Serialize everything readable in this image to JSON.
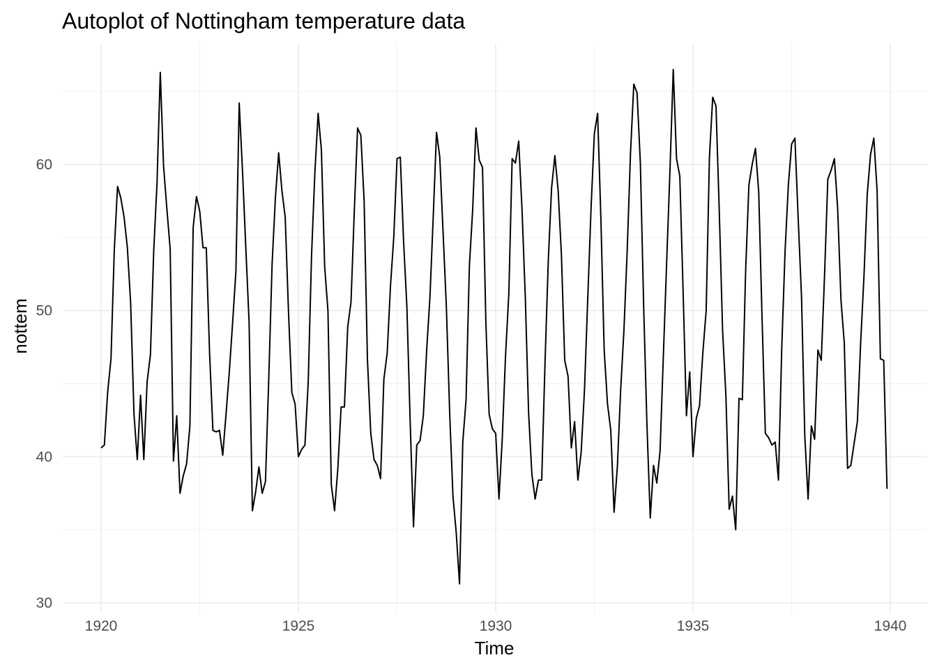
{
  "chart_data": {
    "type": "line",
    "title": "Autoplot of Nottingham temperature data",
    "xlabel": "Time",
    "ylabel": "nottem",
    "xlim": [
      1919.75,
      1940.15
    ],
    "ylim": [
      29.5,
      67.5
    ],
    "x_ticks": [
      1920,
      1925,
      1930,
      1935,
      1940
    ],
    "y_ticks": [
      30,
      40,
      50,
      60
    ],
    "grid": true,
    "start": 1920,
    "frequency": 12,
    "line_color": "#000000",
    "values": [
      40.6,
      40.8,
      44.4,
      46.7,
      54.1,
      58.5,
      57.7,
      56.4,
      54.3,
      50.5,
      42.9,
      39.8,
      44.2,
      39.8,
      45.1,
      47.0,
      54.1,
      58.7,
      66.3,
      59.9,
      57.0,
      54.2,
      39.7,
      42.8,
      37.5,
      38.7,
      39.5,
      42.1,
      55.7,
      57.8,
      56.8,
      54.3,
      54.3,
      47.1,
      41.8,
      41.7,
      41.8,
      40.1,
      42.9,
      45.8,
      49.2,
      52.7,
      64.2,
      59.6,
      54.4,
      49.2,
      36.3,
      37.6,
      39.3,
      37.5,
      38.3,
      45.5,
      53.2,
      57.7,
      60.8,
      58.2,
      56.4,
      49.8,
      44.4,
      43.6,
      40.0,
      40.5,
      40.8,
      45.1,
      53.8,
      59.4,
      63.5,
      61.0,
      53.0,
      50.0,
      38.1,
      36.3,
      39.2,
      43.4,
      43.4,
      48.9,
      50.6,
      56.8,
      62.5,
      62.0,
      57.5,
      46.7,
      41.6,
      39.8,
      39.4,
      38.5,
      45.3,
      47.1,
      51.7,
      55.0,
      60.4,
      60.5,
      54.7,
      50.3,
      42.3,
      35.2,
      40.8,
      41.1,
      42.8,
      47.3,
      50.9,
      56.4,
      62.2,
      60.5,
      55.4,
      50.2,
      43.0,
      37.3,
      34.8,
      31.3,
      41.0,
      43.9,
      53.1,
      56.9,
      62.5,
      60.3,
      59.8,
      49.2,
      42.9,
      41.9,
      41.6,
      37.1,
      41.2,
      46.9,
      51.2,
      60.4,
      60.1,
      61.6,
      57.0,
      50.9,
      43.0,
      38.8,
      37.1,
      38.4,
      38.4,
      46.5,
      53.5,
      58.4,
      60.6,
      58.2,
      53.8,
      46.6,
      45.5,
      40.6,
      42.4,
      38.4,
      40.3,
      44.6,
      50.9,
      57.0,
      62.1,
      63.5,
      56.3,
      47.3,
      43.6,
      41.8,
      36.2,
      39.3,
      44.5,
      48.7,
      54.2,
      60.8,
      65.5,
      64.9,
      60.1,
      50.2,
      42.1,
      35.8,
      39.4,
      38.2,
      40.4,
      46.9,
      53.4,
      59.6,
      66.5,
      60.4,
      59.2,
      51.2,
      42.8,
      45.8,
      40.0,
      42.6,
      43.5,
      47.1,
      50.0,
      60.5,
      64.6,
      64.0,
      56.8,
      48.6,
      44.2,
      36.4,
      37.3,
      35.0,
      44.0,
      43.9,
      52.7,
      58.6,
      60.0,
      61.1,
      58.1,
      49.6,
      41.6,
      41.3,
      40.8,
      41.0,
      38.4,
      47.4,
      54.1,
      58.6,
      61.4,
      61.8,
      56.3,
      50.9,
      41.4,
      37.1,
      42.1,
      41.2,
      47.3,
      46.6,
      52.4,
      59.0,
      59.6,
      60.4,
      57.0,
      50.7,
      47.8,
      39.2,
      39.4,
      40.9,
      42.4,
      47.8,
      52.4,
      58.0,
      60.7,
      61.8,
      58.2,
      46.7,
      46.6,
      37.8
    ]
  }
}
